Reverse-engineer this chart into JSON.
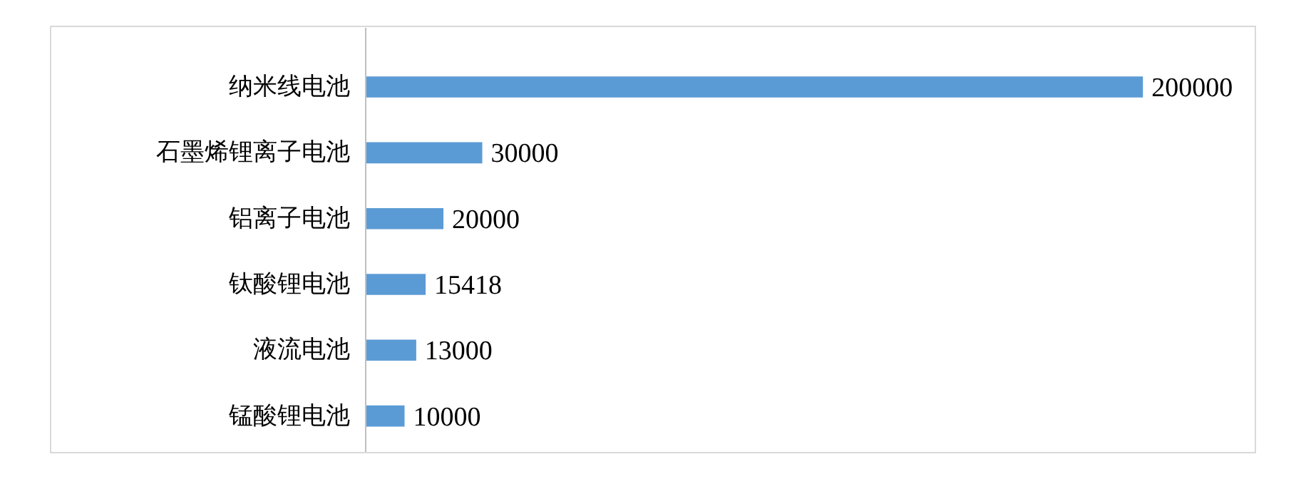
{
  "chart_data": {
    "type": "bar",
    "orientation": "horizontal",
    "categories": [
      "纳米线电池",
      "石墨烯锂离子电池",
      "铝离子电池",
      "钛酸锂电池",
      "液流电池",
      "锰酸锂电池"
    ],
    "values": [
      200000,
      30000,
      20000,
      15418,
      13000,
      10000
    ],
    "color": "#5b9bd5",
    "data_labels": true
  }
}
